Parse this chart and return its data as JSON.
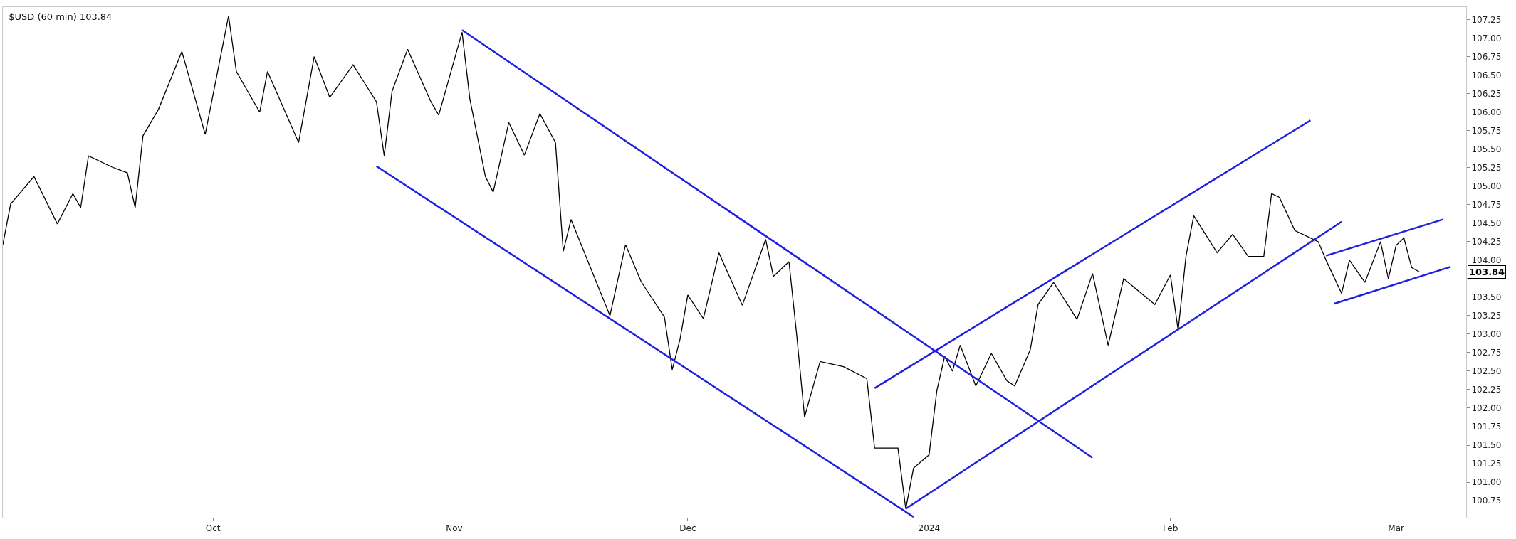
{
  "chart_data": {
    "type": "line",
    "title": "$USD (60 min) 103.84",
    "marker": "none",
    "line_style": "solid",
    "xlim": [
      "2023-09-04",
      "2024-03-10"
    ],
    "xticks": [
      {
        "value": "2023-10-01",
        "label": "Oct"
      },
      {
        "value": "2023-11-01",
        "label": "Nov"
      },
      {
        "value": "2023-12-01",
        "label": "Dec"
      },
      {
        "value": "2024-01-01",
        "label": "2024"
      },
      {
        "value": "2024-02-01",
        "label": "Feb"
      },
      {
        "value": "2024-03-01",
        "label": "Mar"
      }
    ],
    "ylim": [
      100.52,
      107.42
    ],
    "yticks": [
      {
        "value": 100.75,
        "label": "100.75"
      },
      {
        "value": 101,
        "label": "101.00"
      },
      {
        "value": 101.25,
        "label": "101.25"
      },
      {
        "value": 101.5,
        "label": "101.50"
      },
      {
        "value": 101.75,
        "label": "101.75"
      },
      {
        "value": 102,
        "label": "102.00"
      },
      {
        "value": 102.25,
        "label": "102.25"
      },
      {
        "value": 102.5,
        "label": "102.50"
      },
      {
        "value": 102.75,
        "label": "102.75"
      },
      {
        "value": 103,
        "label": "103.00"
      },
      {
        "value": 103.25,
        "label": "103.25"
      },
      {
        "value": 103.5,
        "label": "103.50"
      },
      {
        "value": 103.75,
        "label": null
      },
      {
        "value": 104,
        "label": "104.00"
      },
      {
        "value": 104.25,
        "label": "104.25"
      },
      {
        "value": 104.5,
        "label": "104.50"
      },
      {
        "value": 104.75,
        "label": "104.75"
      },
      {
        "value": 105,
        "label": "105.00"
      },
      {
        "value": 105.25,
        "label": "105.25"
      },
      {
        "value": 105.5,
        "label": "105.50"
      },
      {
        "value": 105.75,
        "label": "105.75"
      },
      {
        "value": 106,
        "label": "106.00"
      },
      {
        "value": 106.25,
        "label": "106.25"
      },
      {
        "value": 106.5,
        "label": "106.50"
      },
      {
        "value": 106.75,
        "label": "106.75"
      },
      {
        "value": 107,
        "label": "107.00"
      },
      {
        "value": 107.25,
        "label": "107.25"
      }
    ],
    "annotations": [
      "103.84"
    ],
    "series": [
      {
        "color": "#000000",
        "x": [
          "2023-09-04",
          "2023-09-05",
          "2023-09-08",
          "2023-09-11",
          "2023-09-13",
          "2023-09-14",
          "2023-09-15",
          "2023-09-18",
          "2023-09-20",
          "2023-09-21",
          "2023-09-22",
          "2023-09-24",
          "2023-09-27",
          "2023-09-30",
          "2023-10-03",
          "2023-10-04",
          "2023-10-07",
          "2023-10-08",
          "2023-10-12",
          "2023-10-14",
          "2023-10-16",
          "2023-10-19",
          "2023-10-22",
          "2023-10-23",
          "2023-10-24",
          "2023-10-26",
          "2023-10-29",
          "2023-10-30",
          "2023-11-02",
          "2023-11-03",
          "2023-11-05",
          "2023-11-06",
          "2023-11-08",
          "2023-11-10",
          "2023-11-12",
          "2023-11-14",
          "2023-11-15",
          "2023-11-16",
          "2023-11-21",
          "2023-11-23",
          "2023-11-25",
          "2023-11-28",
          "2023-11-29",
          "2023-11-30",
          "2023-12-01",
          "2023-12-03",
          "2023-12-05",
          "2023-12-08",
          "2023-12-11",
          "2023-12-12",
          "2023-12-14",
          "2023-12-15",
          "2023-12-16",
          "2023-12-18",
          "2023-12-21",
          "2023-12-24",
          "2023-12-25",
          "2023-12-28",
          "2023-12-29",
          "2023-12-30",
          "2024-01-01",
          "2024-01-02",
          "2024-01-03",
          "2024-01-04",
          "2024-01-05",
          "2024-01-07",
          "2024-01-09",
          "2024-01-11",
          "2024-01-12",
          "2024-01-14",
          "2024-01-15",
          "2024-01-17",
          "2024-01-20",
          "2024-01-22",
          "2024-01-24",
          "2024-01-26",
          "2024-01-30",
          "2024-02-01",
          "2024-02-02",
          "2024-02-03",
          "2024-02-04",
          "2024-02-07",
          "2024-02-09",
          "2024-02-11",
          "2024-02-13",
          "2024-02-14",
          "2024-02-15",
          "2024-02-17",
          "2024-02-19",
          "2024-02-20",
          "2024-02-21",
          "2024-02-23",
          "2024-02-24",
          "2024-02-26",
          "2024-02-28",
          "2024-02-29",
          "2024-03-01",
          "2024-03-02",
          "2024-03-03",
          "2024-03-04"
        ],
        "values": [
          104.21,
          104.76,
          105.13,
          104.49,
          104.9,
          104.71,
          105.41,
          105.26,
          105.18,
          104.71,
          105.68,
          106.04,
          106.82,
          105.7,
          107.3,
          106.55,
          106.0,
          106.55,
          105.59,
          106.75,
          106.2,
          106.64,
          106.14,
          105.41,
          106.28,
          106.85,
          106.14,
          105.96,
          107.08,
          106.18,
          105.13,
          104.92,
          105.86,
          105.42,
          105.98,
          105.59,
          104.12,
          104.55,
          103.25,
          104.21,
          103.71,
          103.23,
          102.52,
          102.93,
          103.53,
          103.21,
          104.1,
          103.39,
          104.28,
          103.78,
          103.98,
          102.98,
          101.88,
          102.63,
          102.56,
          102.4,
          101.46,
          101.46,
          100.64,
          101.19,
          101.37,
          102.24,
          102.7,
          102.5,
          102.85,
          102.3,
          102.74,
          102.37,
          102.3,
          102.79,
          103.4,
          103.7,
          103.2,
          103.82,
          102.85,
          103.75,
          103.4,
          103.8,
          103.05,
          104.05,
          104.6,
          104.1,
          104.35,
          104.05,
          104.05,
          104.9,
          104.85,
          104.4,
          104.3,
          104.25,
          104.0,
          103.55,
          104.0,
          103.7,
          104.25,
          103.75,
          104.2,
          104.3,
          103.9,
          103.84
        ]
      },
      {
        "color": "#1f1fe0",
        "x": [
          "2023-11-02",
          "2024-01-22"
        ],
        "values": [
          107.11,
          101.33
        ]
      },
      {
        "color": "#1f1fe0",
        "x": [
          "2023-10-22",
          "2023-12-30"
        ],
        "values": [
          105.27,
          100.53
        ]
      },
      {
        "color": "#1f1fe0",
        "x": [
          "2023-12-25",
          "2024-02-19"
        ],
        "values": [
          102.27,
          105.89
        ]
      },
      {
        "color": "#1f1fe0",
        "x": [
          "2023-12-29",
          "2024-02-23"
        ],
        "values": [
          100.64,
          104.52
        ]
      },
      {
        "color": "#1f1fe0",
        "x": [
          "2024-02-21",
          "2024-03-07"
        ],
        "values": [
          104.06,
          104.55
        ]
      },
      {
        "color": "#1f1fe0",
        "x": [
          "2024-02-22",
          "2024-03-08"
        ],
        "values": [
          103.41,
          103.91
        ]
      }
    ]
  }
}
